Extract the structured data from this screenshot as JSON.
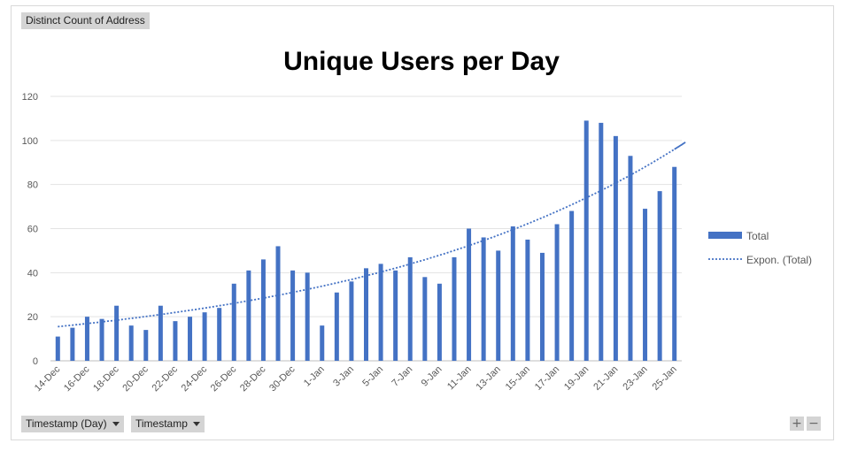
{
  "pivot": {
    "value_field": "Distinct Count of Address",
    "axis_fields": [
      "Timestamp (Day)",
      "Timestamp"
    ],
    "zoom_in": "+",
    "zoom_out": "−"
  },
  "chart_data": {
    "type": "bar",
    "title": "Unique Users per Day",
    "xlabel": "",
    "ylabel": "",
    "ylim": [
      0,
      120
    ],
    "yticks": [
      0,
      20,
      40,
      60,
      80,
      100,
      120
    ],
    "grid": true,
    "legend_position": "right",
    "categories": [
      "14-Dec",
      "15-Dec",
      "16-Dec",
      "17-Dec",
      "18-Dec",
      "19-Dec",
      "20-Dec",
      "21-Dec",
      "22-Dec",
      "23-Dec",
      "24-Dec",
      "25-Dec",
      "26-Dec",
      "27-Dec",
      "28-Dec",
      "29-Dec",
      "30-Dec",
      "31-Dec",
      "1-Jan",
      "2-Jan",
      "3-Jan",
      "4-Jan",
      "5-Jan",
      "6-Jan",
      "7-Jan",
      "8-Jan",
      "9-Jan",
      "10-Jan",
      "11-Jan",
      "12-Jan",
      "13-Jan",
      "14-Jan",
      "15-Jan",
      "16-Jan",
      "17-Jan",
      "18-Jan",
      "19-Jan",
      "20-Jan",
      "21-Jan",
      "22-Jan",
      "23-Jan",
      "24-Jan",
      "25-Jan"
    ],
    "tick_labels": [
      "14-Dec",
      "16-Dec",
      "18-Dec",
      "20-Dec",
      "22-Dec",
      "24-Dec",
      "26-Dec",
      "28-Dec",
      "30-Dec",
      "1-Jan",
      "3-Jan",
      "5-Jan",
      "7-Jan",
      "9-Jan",
      "11-Jan",
      "13-Jan",
      "15-Jan",
      "17-Jan",
      "19-Jan",
      "21-Jan",
      "23-Jan",
      "25-Jan"
    ],
    "series": [
      {
        "name": "Total",
        "color": "#4472c4",
        "values": [
          11,
          15,
          20,
          19,
          25,
          16,
          14,
          25,
          18,
          20,
          22,
          24,
          35,
          41,
          46,
          52,
          41,
          40,
          16,
          31,
          36,
          42,
          44,
          41,
          47,
          38,
          35,
          47,
          60,
          56,
          50,
          61,
          55,
          49,
          62,
          68,
          109,
          108,
          102,
          93,
          69,
          77,
          88
        ]
      }
    ],
    "trendline": {
      "name": "Expon. (Total)",
      "type": "exponential",
      "color": "#4472c4",
      "start": 15.5,
      "end": 96
    }
  }
}
